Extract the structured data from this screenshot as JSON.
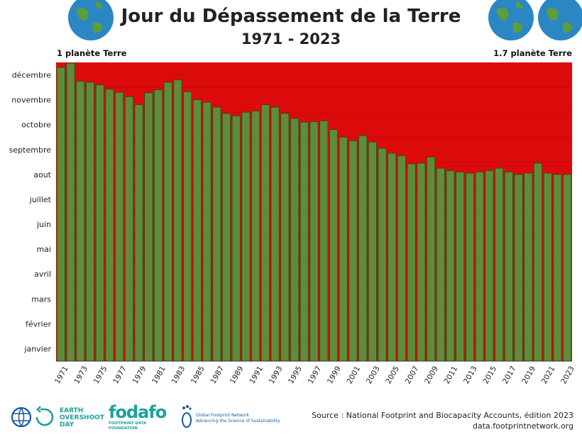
{
  "title": "Jour du Dépassement de la Terre",
  "subtitle": "1971 - 2023",
  "left_label": "1 planète Terre",
  "right_label": "1.7 planète Terre",
  "colors": {
    "background_red": "#dc0b0b",
    "bar_green": "#5e8c3a",
    "bar_border": "#2d4a18",
    "globe_ocean": "#2b86c4",
    "globe_land": "#5c9e3d"
  },
  "logos": {
    "earth_overshoot_day": "EARTH OVERSHOOT DAY",
    "fodafo": "fodafo",
    "fodafo_sub": "FOOTPRINT DATA FOUNDATION",
    "gfn": "Global Footprint Network",
    "gfn_sub": "Advancing the Science of Sustainability"
  },
  "source_line1": "Source : National Footprint and Biocapacity Accounts, édition 2023",
  "source_line2": "data.footprintnetwork.org",
  "chart_data": {
    "type": "bar",
    "title": "Jour du Dépassement de la Terre",
    "subtitle": "1971 - 2023",
    "ylabel": "",
    "xlabel": "",
    "y_unit": "month of year (0 = 1 janvier, 12 = 31 décembre)",
    "ylim": [
      0,
      12
    ],
    "y_ticks": [
      "janvier",
      "février",
      "mars",
      "avril",
      "mai",
      "juin",
      "juillet",
      "aout",
      "septembre",
      "octobre",
      "novembre",
      "décembre"
    ],
    "x_tick_labels": [
      "1971",
      "1973",
      "1975",
      "1977",
      "1979",
      "1981",
      "1983",
      "1985",
      "1987",
      "1989",
      "1991",
      "1993",
      "1995",
      "1997",
      "1999",
      "2001",
      "2003",
      "2005",
      "2007",
      "2009",
      "2011",
      "2013",
      "2015",
      "2017",
      "2019",
      "2021",
      "2023"
    ],
    "categories": [
      "1971",
      "1972",
      "1973",
      "1974",
      "1975",
      "1976",
      "1977",
      "1978",
      "1979",
      "1980",
      "1981",
      "1982",
      "1983",
      "1984",
      "1985",
      "1986",
      "1987",
      "1988",
      "1989",
      "1990",
      "1991",
      "1992",
      "1993",
      "1994",
      "1995",
      "1996",
      "1997",
      "1998",
      "1999",
      "2000",
      "2001",
      "2002",
      "2003",
      "2004",
      "2005",
      "2006",
      "2007",
      "2008",
      "2009",
      "2010",
      "2011",
      "2012",
      "2013",
      "2014",
      "2015",
      "2016",
      "2017",
      "2018",
      "2019",
      "2020",
      "2021",
      "2022",
      "2023"
    ],
    "values": [
      11.8,
      11.97,
      11.25,
      11.2,
      11.1,
      10.92,
      10.8,
      10.62,
      10.3,
      10.78,
      10.9,
      11.2,
      11.3,
      10.82,
      10.5,
      10.4,
      10.2,
      9.95,
      9.85,
      10.0,
      10.05,
      10.3,
      10.2,
      9.95,
      9.75,
      9.6,
      9.62,
      9.65,
      9.3,
      9.0,
      8.85,
      9.05,
      8.8,
      8.55,
      8.35,
      8.25,
      7.92,
      7.95,
      8.2,
      7.75,
      7.65,
      7.6,
      7.55,
      7.6,
      7.65,
      7.75,
      7.6,
      7.5,
      7.55,
      7.95,
      7.55,
      7.5,
      7.5
    ],
    "series": [
      {
        "name": "1 planète Terre",
        "role": "background (full year)"
      },
      {
        "name": "Jour du Dépassement",
        "role": "green bars"
      }
    ]
  }
}
